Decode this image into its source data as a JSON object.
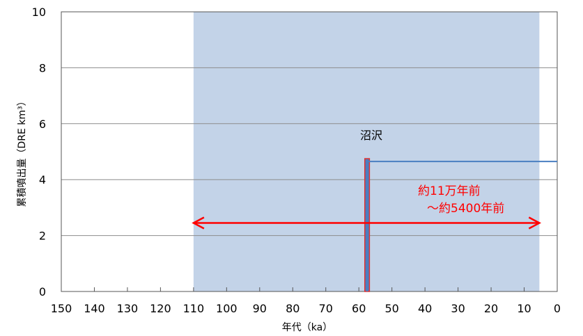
{
  "chart_data": {
    "type": "step-line",
    "xlabel": "年代（ka）",
    "ylabel": "累積噴出量（DRE km³）",
    "xlim": [
      150,
      0
    ],
    "ylim": [
      0,
      10
    ],
    "x_reversed": true,
    "x_ticks": [
      150,
      140,
      130,
      120,
      110,
      100,
      90,
      80,
      70,
      60,
      50,
      40,
      30,
      20,
      10,
      0
    ],
    "y_ticks": [
      0,
      2,
      4,
      6,
      8,
      10
    ],
    "grid": "horizontal",
    "shaded_period": {
      "from": 110,
      "to": 5.4,
      "color": "#c3d3e8"
    },
    "series": [
      {
        "color": "#4a7fc1",
        "points": [
          [
            57.5,
            0
          ],
          [
            57.5,
            4.65
          ],
          [
            0,
            4.65
          ]
        ]
      }
    ],
    "eruption_bar": {
      "x_from": 58.2,
      "x_to": 56.8,
      "value": 4.75,
      "fill": "#4a7fc1",
      "stroke": "#e03030"
    },
    "range_arrow": {
      "from": 110,
      "to": 5.4,
      "y": 2.45,
      "color": "#ff0000"
    },
    "annotations": {
      "eruption_label": "沼沢",
      "period_line1": "約11万年前",
      "period_line2": "～約5400年前"
    }
  }
}
